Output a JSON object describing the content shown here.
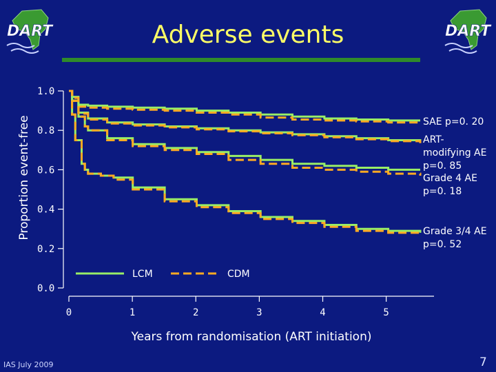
{
  "slide": {
    "title": "Adverse events",
    "footer": "IAS July 2009",
    "page_number": "7",
    "logo_text": "DART"
  },
  "colors": {
    "background": "#0c1a80",
    "title": "#ffff66",
    "lcm": "#99ee66",
    "cdm": "#ffaa22",
    "rule": "#2f8a2a"
  },
  "chart_data": {
    "type": "line",
    "title": "",
    "xlabel": "Years from randomisation (ART initiation)",
    "ylabel": "Proportion event-free",
    "xlim": [
      0,
      5.5
    ],
    "ylim": [
      0,
      1
    ],
    "x_ticks": [
      "0",
      "1",
      "2",
      "3",
      "4",
      "5"
    ],
    "y_ticks": [
      "0.0",
      "0.2",
      "0.4",
      "0.6",
      "0.8",
      "1.0"
    ],
    "legend": [
      {
        "name": "LCM",
        "style": "solid",
        "color": "#99ee66"
      },
      {
        "name": "CDM",
        "style": "dashed",
        "color": "#ffaa22"
      }
    ],
    "groups": [
      {
        "name": "SAE",
        "annotation": [
          "SAE p=0. 20"
        ],
        "series": [
          {
            "name": "LCM",
            "x": [
              0,
              0.05,
              0.15,
              0.3,
              0.6,
              1,
              1.5,
              2,
              2.5,
              3,
              3.5,
              4,
              4.5,
              5,
              5.5
            ],
            "y": [
              1,
              0.97,
              0.93,
              0.925,
              0.92,
              0.915,
              0.91,
              0.9,
              0.89,
              0.88,
              0.87,
              0.86,
              0.855,
              0.85,
              0.85
            ]
          },
          {
            "name": "CDM",
            "x": [
              0,
              0.05,
              0.15,
              0.3,
              0.6,
              1,
              1.5,
              2,
              2.5,
              3,
              3.5,
              4,
              4.5,
              5,
              5.5
            ],
            "y": [
              1,
              0.965,
              0.92,
              0.915,
              0.91,
              0.905,
              0.9,
              0.89,
              0.88,
              0.865,
              0.855,
              0.85,
              0.845,
              0.84,
              0.84
            ]
          }
        ]
      },
      {
        "name": "ART-modifying AE",
        "annotation": [
          "ART-",
          "modifying AE",
          "p=0. 85"
        ],
        "series": [
          {
            "name": "LCM",
            "x": [
              0,
              0.05,
              0.15,
              0.3,
              0.6,
              1,
              1.5,
              2,
              2.5,
              3,
              3.5,
              4,
              4.5,
              5,
              5.5
            ],
            "y": [
              1,
              0.95,
              0.89,
              0.86,
              0.84,
              0.83,
              0.82,
              0.81,
              0.8,
              0.79,
              0.78,
              0.77,
              0.76,
              0.75,
              0.74
            ]
          },
          {
            "name": "CDM",
            "x": [
              0,
              0.05,
              0.15,
              0.3,
              0.6,
              1,
              1.5,
              2,
              2.5,
              3,
              3.5,
              4,
              4.5,
              5,
              5.5
            ],
            "y": [
              1,
              0.95,
              0.885,
              0.855,
              0.835,
              0.825,
              0.815,
              0.805,
              0.795,
              0.785,
              0.775,
              0.765,
              0.755,
              0.745,
              0.735
            ]
          }
        ]
      },
      {
        "name": "Grade 4 AE",
        "annotation": [
          "Grade 4 AE",
          "p=0. 18"
        ],
        "series": [
          {
            "name": "LCM",
            "x": [
              0,
              0.05,
              0.15,
              0.25,
              0.3,
              0.6,
              1,
              1.5,
              2,
              2.5,
              3,
              3.5,
              4,
              4.5,
              5,
              5.5
            ],
            "y": [
              1,
              0.95,
              0.87,
              0.82,
              0.8,
              0.76,
              0.73,
              0.71,
              0.69,
              0.67,
              0.65,
              0.63,
              0.62,
              0.61,
              0.6,
              0.6
            ]
          },
          {
            "name": "CDM",
            "x": [
              0,
              0.05,
              0.15,
              0.25,
              0.3,
              0.6,
              1,
              1.5,
              2,
              2.5,
              3,
              3.5,
              4,
              4.5,
              5,
              5.5
            ],
            "y": [
              1,
              0.95,
              0.87,
              0.82,
              0.8,
              0.75,
              0.72,
              0.7,
              0.68,
              0.65,
              0.63,
              0.61,
              0.6,
              0.59,
              0.58,
              0.57
            ]
          }
        ]
      },
      {
        "name": "Grade 3/4 AE",
        "annotation": [
          "Grade 3/4 AE",
          "p=0. 52"
        ],
        "series": [
          {
            "name": "LCM",
            "x": [
              0,
              0.05,
              0.1,
              0.2,
              0.25,
              0.3,
              0.5,
              0.7,
              1,
              1.5,
              2,
              2.5,
              3,
              3.5,
              4,
              4.5,
              5,
              5.5
            ],
            "y": [
              1,
              0.88,
              0.75,
              0.63,
              0.6,
              0.58,
              0.57,
              0.56,
              0.51,
              0.45,
              0.42,
              0.39,
              0.36,
              0.34,
              0.32,
              0.3,
              0.29,
              0.28
            ]
          },
          {
            "name": "CDM",
            "x": [
              0,
              0.05,
              0.1,
              0.2,
              0.25,
              0.3,
              0.5,
              0.7,
              1,
              1.5,
              2,
              2.5,
              3,
              3.5,
              4,
              4.5,
              5,
              5.5
            ],
            "y": [
              1,
              0.88,
              0.75,
              0.63,
              0.6,
              0.58,
              0.57,
              0.55,
              0.5,
              0.44,
              0.41,
              0.38,
              0.35,
              0.33,
              0.31,
              0.29,
              0.28,
              0.27
            ]
          }
        ]
      }
    ]
  }
}
